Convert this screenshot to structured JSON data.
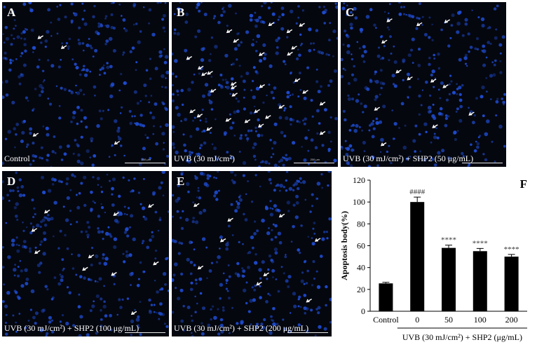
{
  "panels": [
    {
      "label": "A",
      "caption": "Control",
      "scale": "200 μm",
      "arrows": 4
    },
    {
      "label": "B",
      "caption": "UVB (30 mJ/cm²)",
      "scale": "200 μm",
      "arrows": 30
    },
    {
      "label": "C",
      "caption": "UVB (30 mJ/cm²) + SHP2 (50 μg/mL)",
      "scale": "",
      "arrows": 12
    },
    {
      "label": "D",
      "caption": "UVB (30 mJ/cm²) + SHP2 (100 μg/mL)",
      "scale": "",
      "arrows": 10
    },
    {
      "label": "E",
      "caption": "UVB (30 mJ/cm²) + SHP2 (200 μg/mL)",
      "scale": "",
      "arrows": 9
    }
  ],
  "colors": {
    "background": "#05070f",
    "nuclei": "#1f4fd8",
    "arrow": "#ffffff",
    "bar": "#000000"
  },
  "chart_data": {
    "type": "bar",
    "panel_label": "F",
    "categories": [
      "Control",
      "0",
      "50",
      "100",
      "200"
    ],
    "values": [
      25.5,
      100,
      58,
      55,
      50
    ],
    "errors": [
      1,
      4.5,
      2.5,
      2.5,
      2
    ],
    "significance": [
      "",
      "####",
      "****",
      "****",
      "****"
    ],
    "ylabel": "Apoptosis body(%)",
    "group_label": "UVB (30 mJ/cm²) + SHP2 (μg/mL)",
    "ylim": [
      0,
      120
    ],
    "yticks": [
      0,
      20,
      40,
      60,
      80,
      100,
      120
    ],
    "grid": false
  }
}
